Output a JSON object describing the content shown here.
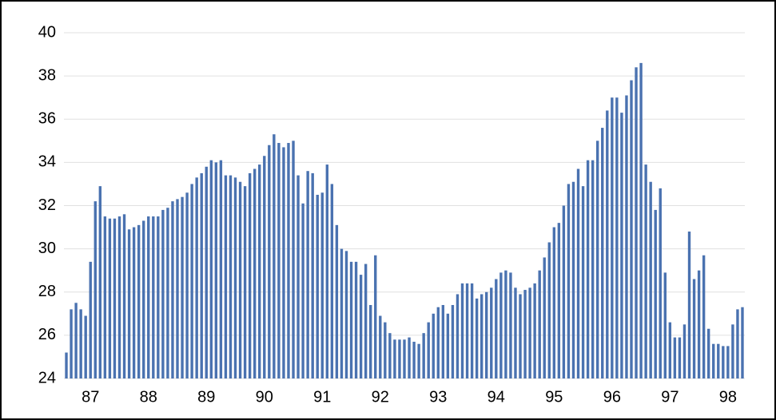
{
  "chart_data": {
    "type": "bar",
    "categories": [
      null,
      null,
      null,
      null,
      null,
      "87",
      null,
      null,
      null,
      null,
      null,
      null,
      null,
      null,
      null,
      null,
      null,
      "88",
      null,
      null,
      null,
      null,
      null,
      null,
      null,
      null,
      null,
      null,
      null,
      "89",
      null,
      null,
      null,
      null,
      null,
      null,
      null,
      null,
      null,
      null,
      null,
      "90",
      null,
      null,
      null,
      null,
      null,
      null,
      null,
      null,
      null,
      null,
      null,
      "91",
      null,
      null,
      null,
      null,
      null,
      null,
      null,
      null,
      null,
      null,
      null,
      "92",
      null,
      null,
      null,
      null,
      null,
      null,
      null,
      null,
      null,
      null,
      null,
      "93",
      null,
      null,
      null,
      null,
      null,
      null,
      null,
      null,
      null,
      null,
      null,
      "94",
      null,
      null,
      null,
      null,
      null,
      null,
      null,
      null,
      null,
      null,
      null,
      "95",
      null,
      null,
      null,
      null,
      null,
      null,
      null,
      null,
      null,
      null,
      null,
      "96",
      null,
      null,
      null,
      null,
      null,
      null,
      null,
      null,
      null,
      null,
      null,
      "97",
      null,
      null,
      null,
      null,
      null,
      null,
      null,
      null,
      null,
      null,
      null,
      "98",
      null,
      null,
      null
    ],
    "values": [
      25.2,
      27.2,
      27.5,
      27.2,
      26.9,
      29.4,
      32.2,
      32.9,
      31.5,
      31.4,
      31.4,
      31.5,
      31.6,
      30.9,
      31.0,
      31.1,
      31.3,
      31.5,
      31.5,
      31.5,
      31.8,
      31.9,
      32.2,
      32.3,
      32.4,
      32.6,
      33.0,
      33.3,
      33.5,
      33.8,
      34.1,
      34.0,
      34.1,
      33.4,
      33.4,
      33.3,
      33.1,
      32.9,
      33.5,
      33.7,
      33.9,
      34.3,
      34.8,
      35.3,
      34.9,
      34.7,
      34.9,
      35.0,
      33.4,
      32.1,
      33.6,
      33.5,
      32.5,
      32.6,
      33.9,
      33.0,
      31.1,
      30.0,
      29.9,
      29.4,
      29.4,
      28.8,
      29.3,
      27.4,
      29.7,
      26.9,
      26.6,
      26.1,
      25.8,
      25.8,
      25.8,
      25.9,
      25.7,
      25.6,
      26.1,
      26.6,
      27.0,
      27.3,
      27.4,
      27.0,
      27.4,
      27.9,
      28.4,
      28.4,
      28.4,
      27.7,
      27.9,
      28.0,
      28.2,
      28.6,
      28.9,
      29.0,
      28.9,
      28.2,
      27.9,
      28.1,
      28.2,
      28.4,
      29.0,
      29.6,
      30.3,
      31.0,
      31.2,
      32.0,
      33.0,
      33.1,
      33.7,
      32.9,
      34.1,
      34.1,
      35.0,
      35.6,
      36.4,
      37.0,
      37.0,
      36.3,
      37.1,
      37.8,
      38.4,
      38.6,
      33.9,
      33.1,
      31.8,
      32.8,
      28.9,
      26.6,
      25.9,
      25.9,
      26.5,
      30.8,
      28.6,
      29.0,
      29.7,
      26.3,
      25.6,
      25.6,
      25.5,
      25.5,
      26.5,
      27.2,
      27.3
    ],
    "color": "#4a72b0",
    "ylim": [
      24,
      40
    ],
    "yticks": [
      24,
      26,
      28,
      30,
      32,
      34,
      36,
      38,
      40
    ],
    "grid": true
  }
}
